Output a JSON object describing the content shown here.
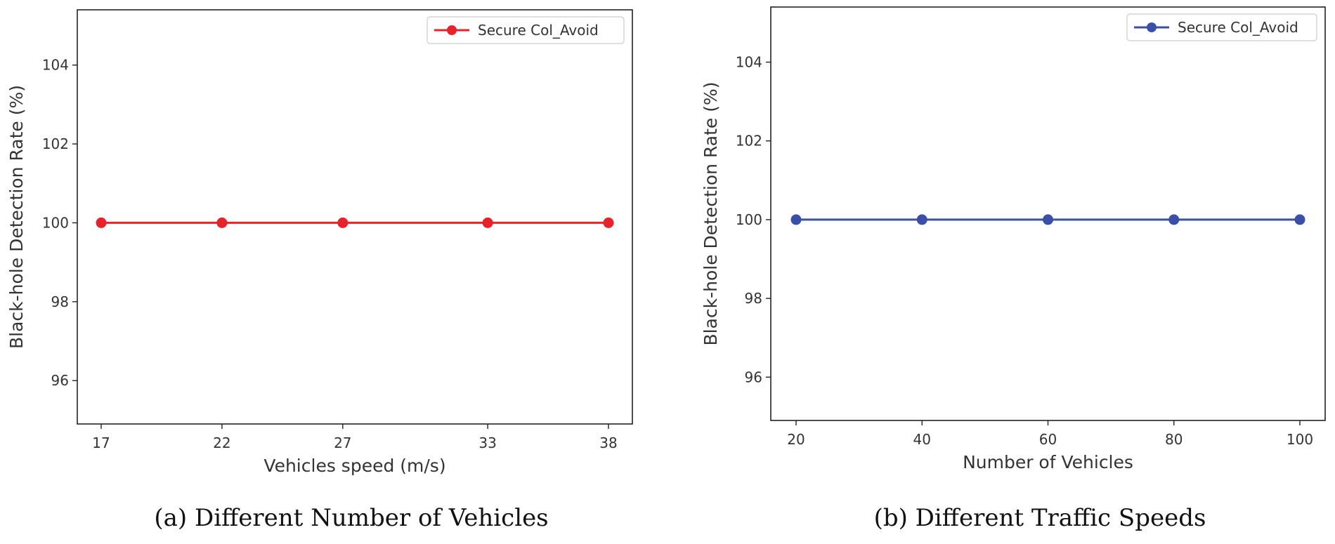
{
  "chart_data": [
    {
      "type": "line",
      "caption": "(a) Different Number of Vehicles",
      "xlabel": "Vehicles speed (m/s)",
      "ylabel": "Black-hole Detection Rate (%)",
      "x": [
        17,
        22,
        27,
        33,
        38
      ],
      "x_tick_labels": [
        "17",
        "22",
        "27",
        "33",
        "38"
      ],
      "y_ticks": [
        96,
        98,
        100,
        102,
        104
      ],
      "ylim": [
        94.9,
        105.4
      ],
      "series": [
        {
          "name": "Secure Col_Avoid",
          "color": "#e8222a",
          "values": [
            100,
            100,
            100,
            100,
            100
          ]
        }
      ],
      "legend": "top-right",
      "grid": false
    },
    {
      "type": "line",
      "caption": "(b) Different Traffic Speeds",
      "xlabel": "Number of Vehicles",
      "ylabel": "Black-hole Detection Rate (%)",
      "x": [
        20,
        40,
        60,
        80,
        100
      ],
      "x_tick_labels": [
        "20",
        "40",
        "60",
        "80",
        "100"
      ],
      "y_ticks": [
        96,
        98,
        100,
        102,
        104
      ],
      "ylim": [
        94.9,
        105.4
      ],
      "series": [
        {
          "name": "Secure Col_Avoid",
          "color": "#3a4fa8",
          "values": [
            100,
            100,
            100,
            100,
            100
          ]
        }
      ],
      "legend": "top-right",
      "grid": false
    }
  ]
}
